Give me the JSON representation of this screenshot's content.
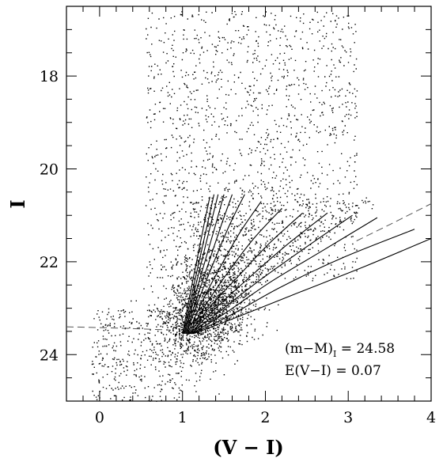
{
  "chart_data": {
    "type": "scatter",
    "title": "",
    "xlabel": "(V − I)",
    "ylabel": "I",
    "xlim": [
      -0.4,
      4.0
    ],
    "ylim": [
      25.0,
      16.5
    ],
    "y_inverted": true,
    "x_ticks": [
      0,
      1,
      2,
      3,
      4
    ],
    "x_tick_labels": [
      "0",
      "1",
      "2",
      "3",
      "4"
    ],
    "y_ticks": [
      18,
      20,
      22,
      24
    ],
    "y_tick_labels": [
      "18",
      "20",
      "22",
      "24"
    ],
    "grid": false,
    "legend": "none",
    "point_color": "#000000",
    "scatter_regions": [
      {
        "name": "field",
        "x_range": [
          0.55,
          3.1
        ],
        "y_range": [
          16.6,
          22.4
        ],
        "fraction": 0.34
      },
      {
        "name": "main-clump",
        "x_center": 1.25,
        "y_center": 23.1,
        "x_sd": 0.28,
        "y_sd": 0.55,
        "fraction": 0.36
      },
      {
        "name": "branch",
        "x_range": [
          1.1,
          3.6
        ],
        "y_range": [
          20.6,
          23.4
        ],
        "fraction": 0.22
      },
      {
        "name": "blue-faint",
        "x_range": [
          -0.1,
          1.0
        ],
        "y_range": [
          23.0,
          25.0
        ],
        "fraction": 0.08
      }
    ],
    "isochrones": [
      {
        "x": [
          1.0,
          1.08,
          1.17,
          1.26,
          1.33
        ],
        "y": [
          23.55,
          22.8,
          22.0,
          21.2,
          20.6
        ]
      },
      {
        "x": [
          1.01,
          1.1,
          1.2,
          1.3,
          1.38
        ],
        "y": [
          23.55,
          22.8,
          22.0,
          21.2,
          20.55
        ]
      },
      {
        "x": [
          1.02,
          1.12,
          1.23,
          1.34,
          1.43
        ],
        "y": [
          23.55,
          22.8,
          22.0,
          21.2,
          20.55
        ]
      },
      {
        "x": [
          1.03,
          1.14,
          1.27,
          1.4,
          1.5
        ],
        "y": [
          23.55,
          22.8,
          22.0,
          21.2,
          20.55
        ]
      },
      {
        "x": [
          1.04,
          1.17,
          1.32,
          1.47,
          1.6
        ],
        "y": [
          23.55,
          22.8,
          22.0,
          21.2,
          20.55
        ]
      },
      {
        "x": [
          1.05,
          1.2,
          1.38,
          1.57,
          1.75
        ],
        "y": [
          23.55,
          22.8,
          22.0,
          21.2,
          20.55
        ]
      },
      {
        "x": [
          1.06,
          1.24,
          1.46,
          1.7,
          1.95
        ],
        "y": [
          23.55,
          22.85,
          22.1,
          21.35,
          20.7
        ]
      },
      {
        "x": [
          1.07,
          1.29,
          1.56,
          1.86,
          2.2
        ],
        "y": [
          23.55,
          22.9,
          22.2,
          21.5,
          20.85
        ]
      },
      {
        "x": [
          1.08,
          1.34,
          1.68,
          2.05,
          2.45
        ],
        "y": [
          23.55,
          22.95,
          22.3,
          21.6,
          20.95
        ]
      },
      {
        "x": [
          1.09,
          1.4,
          1.8,
          2.25,
          2.75
        ],
        "y": [
          23.55,
          23.0,
          22.35,
          21.65,
          20.95
        ]
      },
      {
        "x": [
          1.1,
          1.46,
          1.93,
          2.48,
          3.05
        ],
        "y": [
          23.55,
          23.05,
          22.4,
          21.7,
          21.0
        ]
      },
      {
        "x": [
          1.11,
          1.52,
          2.05,
          2.7,
          3.35
        ],
        "y": [
          23.55,
          23.1,
          22.45,
          21.75,
          21.05
        ]
      },
      {
        "x": [
          1.12,
          1.58,
          2.18,
          2.95,
          3.8
        ],
        "y": [
          23.55,
          23.15,
          22.55,
          21.9,
          21.3
        ]
      },
      {
        "x": [
          1.13,
          1.65,
          2.35,
          3.2,
          4.0
        ],
        "y": [
          23.55,
          23.2,
          22.7,
          22.1,
          21.5
        ]
      }
    ],
    "reference_lines": [
      {
        "style": "dashed",
        "x": [
          -0.4,
          0.25,
          0.85
        ],
        "y": [
          23.4,
          23.43,
          23.47
        ]
      },
      {
        "style": "dashed",
        "x": [
          3.1,
          3.5,
          4.0
        ],
        "y": [
          21.55,
          21.2,
          20.75
        ]
      }
    ],
    "annotations": {
      "distance_modulus": {
        "main": "(m−M)",
        "subscript": "I",
        "value": " = 24.58"
      },
      "reddening": "E(V−I)  =  0.07"
    }
  }
}
